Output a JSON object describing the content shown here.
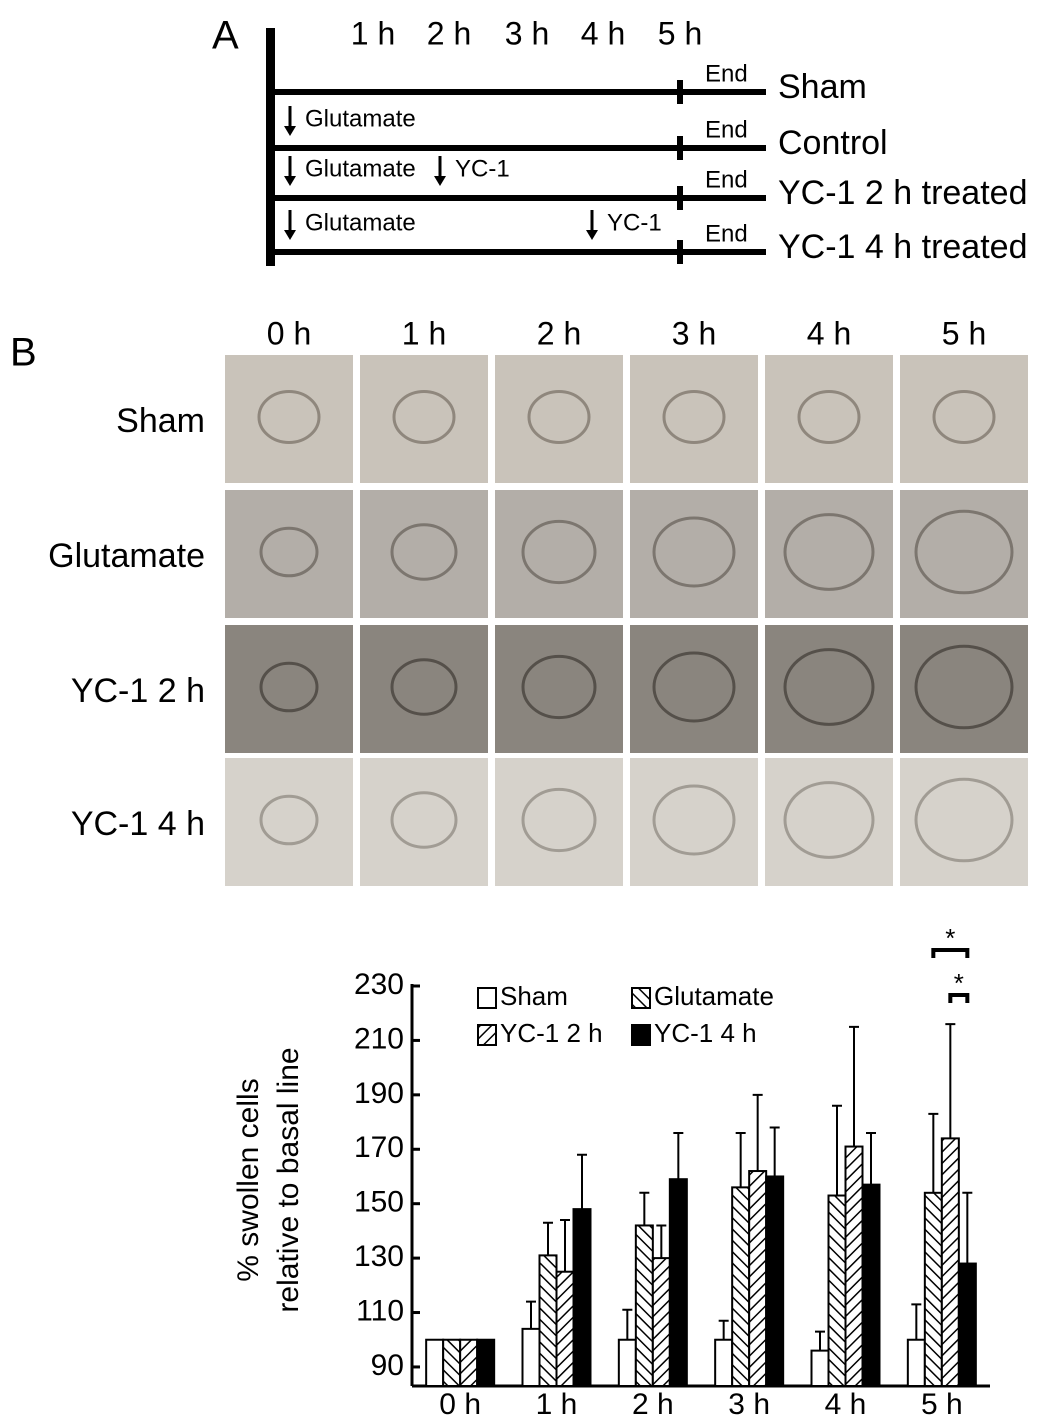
{
  "panel_a": {
    "label": "A",
    "hours": [
      "1 h",
      "2 h",
      "3 h",
      "4 h",
      "5 h"
    ],
    "rows": [
      {
        "name": "Sham",
        "end": "End",
        "events": []
      },
      {
        "name": "Control",
        "end": "End",
        "events": [
          "Glutamate"
        ]
      },
      {
        "name": "YC-1 2 h treated",
        "end": "End",
        "events": [
          "Glutamate",
          "YC-1"
        ]
      },
      {
        "name": "YC-1 4 h treated",
        "end": "End",
        "events": [
          "Glutamate",
          "YC-1"
        ]
      }
    ]
  },
  "panel_b": {
    "label": "B",
    "columns": [
      "0 h",
      "1 h",
      "2 h",
      "3 h",
      "4 h",
      "5 h"
    ],
    "rows": [
      "Sham",
      "Glutamate",
      "YC-1 2 h",
      "YC-1 4 h"
    ]
  },
  "chart_data": {
    "type": "bar",
    "y_label": [
      "% swollen cells",
      "relative to basal line"
    ],
    "categories": [
      "0 h",
      "1 h",
      "2 h",
      "3 h",
      "4 h",
      "5 h"
    ],
    "series": [
      {
        "name": "Sham",
        "color": "#ffffff",
        "pattern": "none",
        "values": [
          100,
          104,
          100,
          100,
          96,
          100
        ],
        "errors": [
          0,
          10,
          11,
          7,
          7,
          13
        ]
      },
      {
        "name": "Glutamate",
        "color": "#000000",
        "pattern": "back-diagonal",
        "values": [
          100,
          131,
          142,
          156,
          153,
          154
        ],
        "errors": [
          0,
          12,
          12,
          20,
          33,
          29
        ]
      },
      {
        "name": "YC-1 2 h",
        "color": "#000000",
        "pattern": "diagonal",
        "values": [
          100,
          125,
          130,
          162,
          171,
          174
        ],
        "errors": [
          0,
          19,
          12,
          28,
          44,
          42
        ]
      },
      {
        "name": "YC-1 4 h",
        "color": "#000000",
        "pattern": "solid",
        "values": [
          100,
          148,
          159,
          160,
          157,
          128
        ],
        "errors": [
          0,
          20,
          17,
          18,
          19,
          26
        ]
      }
    ],
    "ylim": [
      83,
      230
    ],
    "yticks": [
      90,
      110,
      130,
      150,
      170,
      190,
      210,
      230
    ],
    "annotations": [
      "*",
      "*"
    ]
  }
}
